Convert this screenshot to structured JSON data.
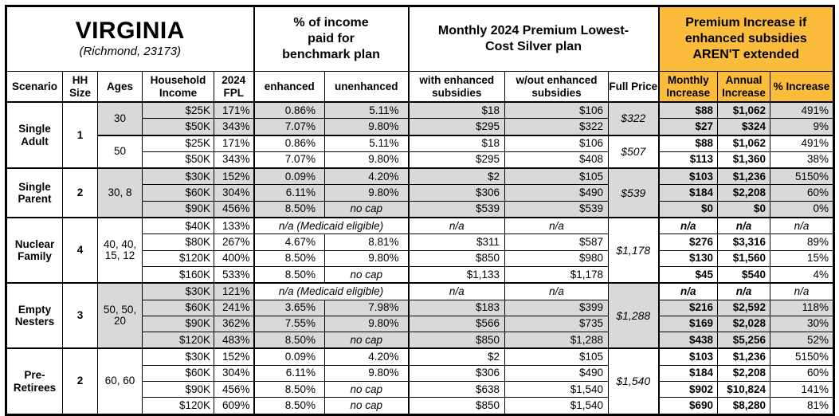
{
  "title": {
    "state": "VIRGINIA",
    "location": "(Richmond, 23173)"
  },
  "header_groups": {
    "income_pct": "% of income paid for benchmark plan",
    "premium": "Monthly 2024 Premium Lowest-Cost Silver plan",
    "increase": "Premium Increase if enhanced subsidies AREN'T extended"
  },
  "column_headers": {
    "scenario": "Scenario",
    "hh_size": "HH Size",
    "ages": "Ages",
    "household_income": "Household Income",
    "fpl": "2024 FPL",
    "enhanced": "enhanced",
    "unenhanced": "unenhanced",
    "with_subsidies": "with enhanced subsidies",
    "without_subsidies": "w/out enhanced subsidies",
    "full_price": "Full Price",
    "monthly_increase": "Monthly Increase",
    "annual_increase": "Annual Increase",
    "pct_increase": "% Increase"
  },
  "scenarios": [
    {
      "name": "Single Adult",
      "hh_size": "1"
    },
    {
      "name": "Single Parent",
      "hh_size": "2"
    },
    {
      "name": "Nuclear Family",
      "hh_size": "4"
    },
    {
      "name": "Empty Nesters",
      "hh_size": "3"
    },
    {
      "name": "Pre-Retirees",
      "hh_size": "2"
    }
  ],
  "ages": [
    "30",
    "50",
    "30, 8",
    "40, 40, 15, 12",
    "50, 50, 20",
    "60, 60"
  ],
  "full_prices": [
    "$322",
    "$507",
    "$539",
    "$1,178",
    "$1,288",
    "$1,540"
  ],
  "medicaid_note": "n/a (Medicaid eligible)",
  "na": "n/a",
  "rows": [
    [
      "$25K",
      "171%",
      "0.86%",
      "5.11%",
      "$18",
      "$106",
      "$88",
      "$1,062",
      "491%"
    ],
    [
      "$50K",
      "343%",
      "7.07%",
      "9.80%",
      "$295",
      "$322",
      "$27",
      "$324",
      "9%"
    ],
    [
      "$25K",
      "171%",
      "0.86%",
      "5.11%",
      "$18",
      "$106",
      "$88",
      "$1,062",
      "491%"
    ],
    [
      "$50K",
      "343%",
      "7.07%",
      "9.80%",
      "$295",
      "$408",
      "$113",
      "$1,360",
      "38%"
    ],
    [
      "$30K",
      "152%",
      "0.09%",
      "4.20%",
      "$2",
      "$105",
      "$103",
      "$1,236",
      "5150%"
    ],
    [
      "$60K",
      "304%",
      "6.11%",
      "9.80%",
      "$306",
      "$490",
      "$184",
      "$2,208",
      "60%"
    ],
    [
      "$90K",
      "456%",
      "8.50%",
      "no cap",
      "$539",
      "$539",
      "$0",
      "$0",
      "0%"
    ],
    [
      "$40K",
      "133%",
      "",
      "",
      "",
      "",
      "",
      "",
      ""
    ],
    [
      "$80K",
      "267%",
      "4.67%",
      "8.81%",
      "$311",
      "$587",
      "$276",
      "$3,316",
      "89%"
    ],
    [
      "$120K",
      "400%",
      "8.50%",
      "9.80%",
      "$850",
      "$980",
      "$130",
      "$1,560",
      "15%"
    ],
    [
      "$160K",
      "533%",
      "8.50%",
      "no cap",
      "$1,133",
      "$1,178",
      "$45",
      "$540",
      "4%"
    ],
    [
      "$30K",
      "121%",
      "",
      "",
      "",
      "",
      "",
      "",
      ""
    ],
    [
      "$60K",
      "241%",
      "3.65%",
      "7.98%",
      "$183",
      "$399",
      "$216",
      "$2,592",
      "118%"
    ],
    [
      "$90K",
      "362%",
      "7.55%",
      "9.80%",
      "$566",
      "$735",
      "$169",
      "$2,028",
      "30%"
    ],
    [
      "$120K",
      "483%",
      "8.50%",
      "no cap",
      "$850",
      "$1,288",
      "$438",
      "$5,256",
      "52%"
    ],
    [
      "$30K",
      "152%",
      "0.09%",
      "4.20%",
      "$2",
      "$105",
      "$103",
      "$1,236",
      "5150%"
    ],
    [
      "$60K",
      "304%",
      "6.11%",
      "9.80%",
      "$306",
      "$490",
      "$184",
      "$2,208",
      "60%"
    ],
    [
      "$90K",
      "456%",
      "8.50%",
      "no cap",
      "$638",
      "$1,540",
      "$902",
      "$10,824",
      "141%"
    ],
    [
      "$120K",
      "609%",
      "8.50%",
      "no cap",
      "$850",
      "$1,540",
      "$690",
      "$8,280",
      "81%"
    ]
  ],
  "colors": {
    "header_accent": "#FBBC3C",
    "row_shade": "#D9D9D9"
  }
}
